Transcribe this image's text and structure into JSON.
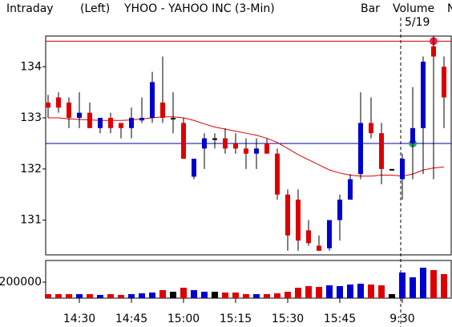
{
  "chart_data": {
    "type": "candlestick",
    "header": {
      "mode": "Intraday",
      "side": "(Left)",
      "title": "YHOO - YAHOO INC  (3-Min)",
      "style": "Bar",
      "study": "Volume",
      "more": "N",
      "date": "5/19"
    },
    "colors": {
      "up": "#0000cc",
      "down": "#dd0000",
      "flat": "#000000",
      "ma": "#dd0000",
      "study": "#00aa00",
      "more": "#dd0000"
    },
    "categories": [
      null,
      null,
      null,
      "14:30",
      null,
      null,
      null,
      null,
      "14:45",
      null,
      null,
      null,
      null,
      "15:00",
      null,
      null,
      null,
      null,
      "15:15",
      null,
      null,
      null,
      null,
      "15:30",
      null,
      null,
      null,
      null,
      "15:45",
      null,
      null,
      null,
      null,
      null,
      "9:30",
      null,
      null,
      null,
      null
    ],
    "open": [
      133.3,
      133.4,
      133.3,
      133.0,
      133.1,
      132.8,
      133.0,
      132.9,
      132.8,
      132.95,
      133.0,
      133.3,
      133.0,
      132.9,
      131.85,
      132.4,
      132.6,
      132.6,
      132.5,
      132.4,
      132.3,
      132.5,
      132.3,
      131.5,
      131.4,
      130.8,
      130.5,
      130.45,
      131.0,
      131.4,
      131.9,
      132.9,
      132.7,
      132.0,
      131.8,
      132.5,
      132.8,
      134.4,
      134.0
    ],
    "high": [
      133.45,
      133.5,
      133.4,
      133.5,
      133.3,
      133.0,
      133.1,
      132.9,
      133.2,
      133.4,
      133.9,
      134.2,
      133.5,
      133.0,
      132.2,
      132.7,
      132.7,
      132.8,
      132.7,
      132.6,
      132.6,
      132.6,
      132.4,
      131.6,
      131.6,
      131.0,
      130.7,
      131.0,
      131.5,
      131.9,
      133.5,
      133.4,
      132.9,
      132.0,
      132.3,
      133.6,
      134.2,
      134.6,
      134.2
    ],
    "low": [
      133.0,
      133.1,
      132.8,
      132.8,
      132.8,
      132.7,
      132.7,
      132.6,
      132.6,
      132.9,
      132.9,
      132.9,
      132.7,
      132.2,
      131.8,
      132.0,
      132.4,
      132.3,
      132.3,
      132.0,
      132.0,
      132.3,
      131.4,
      130.4,
      130.4,
      130.5,
      130.4,
      130.4,
      130.6,
      131.4,
      131.8,
      132.6,
      131.7,
      132.0,
      131.4,
      131.8,
      131.9,
      131.8,
      132.8
    ],
    "close": [
      133.2,
      133.2,
      133.0,
      133.1,
      132.8,
      133.0,
      132.8,
      132.8,
      133.0,
      133.0,
      133.7,
      133.0,
      133.0,
      132.2,
      132.2,
      132.6,
      132.6,
      132.4,
      132.4,
      132.3,
      132.4,
      132.3,
      131.5,
      130.7,
      130.6,
      130.55,
      130.4,
      131.0,
      131.4,
      131.8,
      132.9,
      132.7,
      132.0,
      132.0,
      132.2,
      132.8,
      134.1,
      134.2,
      133.4
    ],
    "ma": [
      133.0,
      133.0,
      132.98,
      132.97,
      132.96,
      132.95,
      132.95,
      132.95,
      132.96,
      132.98,
      133.0,
      133.02,
      133.02,
      133.0,
      132.95,
      132.88,
      132.82,
      132.78,
      132.74,
      132.7,
      132.66,
      132.6,
      132.52,
      132.4,
      132.28,
      132.18,
      132.08,
      131.98,
      131.92,
      131.88,
      131.86,
      131.86,
      131.88,
      131.88,
      131.86,
      131.9,
      131.98,
      132.02,
      132.04
    ],
    "volume": [
      50000,
      50000,
      50000,
      50000,
      50000,
      40000,
      50000,
      40000,
      50000,
      60000,
      70000,
      100000,
      80000,
      130000,
      100000,
      80000,
      80000,
      70000,
      70000,
      50000,
      50000,
      50000,
      60000,
      80000,
      130000,
      150000,
      140000,
      160000,
      150000,
      170000,
      180000,
      170000,
      160000,
      50000,
      320000,
      260000,
      380000,
      350000,
      300000
    ],
    "hlines": [
      {
        "value": 134.5,
        "color": "#cc0000",
        "marker": 37,
        "marker_color": "#ee2244"
      },
      {
        "value": 132.5,
        "color": "#0000aa",
        "marker": 35,
        "marker_color": "#22aa66"
      }
    ],
    "session_break": 34,
    "ylim": [
      130.32,
      134.6
    ],
    "yticks": [
      131,
      132,
      133,
      134
    ],
    "vol_ylim": [
      0,
      460000
    ],
    "vol_yticks": [
      200000
    ]
  }
}
